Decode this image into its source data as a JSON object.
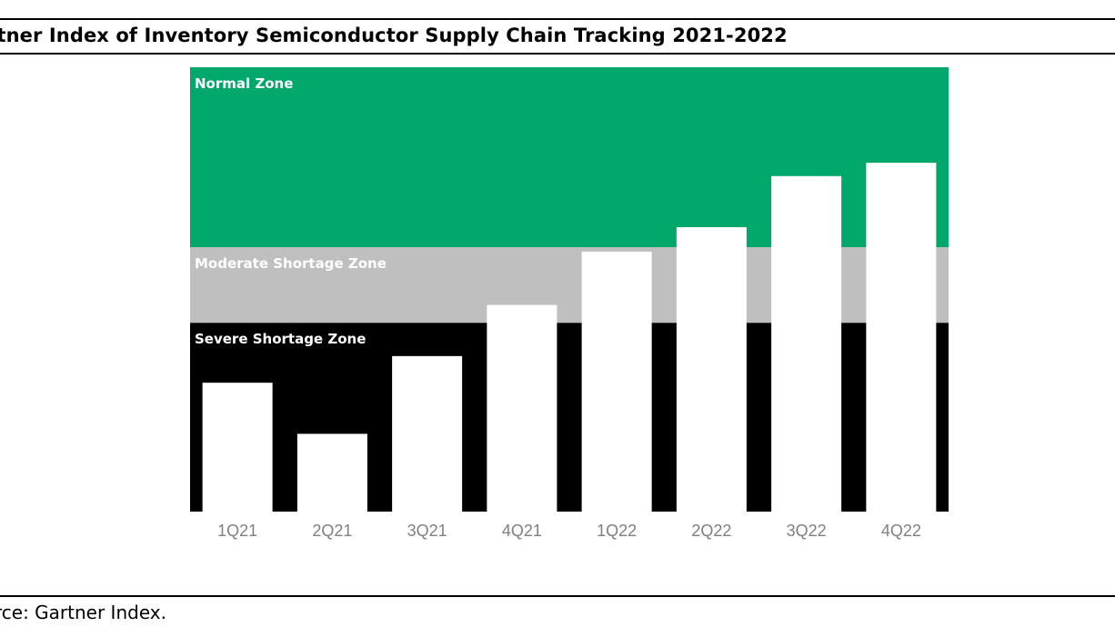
{
  "header": {
    "title": "rtner Index of Inventory Semiconductor Supply Chain Tracking 2021-2022"
  },
  "footer": {
    "source": "rce: Gartner Index."
  },
  "colors": {
    "normal_zone": "#00a86b",
    "moderate_zone": "#bfbfbf",
    "severe_zone": "#000000",
    "bars": "#ffffff",
    "tick_labels": "#808080"
  },
  "chart_data": {
    "type": "bar",
    "title": "",
    "xlabel": "",
    "ylabel": "",
    "ylim": [
      0,
      100
    ],
    "categories": [
      "1Q21",
      "2Q21",
      "3Q21",
      "4Q21",
      "1Q22",
      "2Q22",
      "3Q22",
      "4Q22"
    ],
    "values": [
      29,
      17.5,
      35,
      46.5,
      58.5,
      64,
      75.5,
      78.5
    ],
    "zones": [
      {
        "name": "Severe Shortage Zone",
        "from": 0,
        "to": 42.5
      },
      {
        "name": "Moderate Shortage Zone",
        "from": 42.5,
        "to": 59.5
      },
      {
        "name": "Normal Zone",
        "from": 59.5,
        "to": 100
      }
    ],
    "grid": false,
    "legend": "none"
  }
}
